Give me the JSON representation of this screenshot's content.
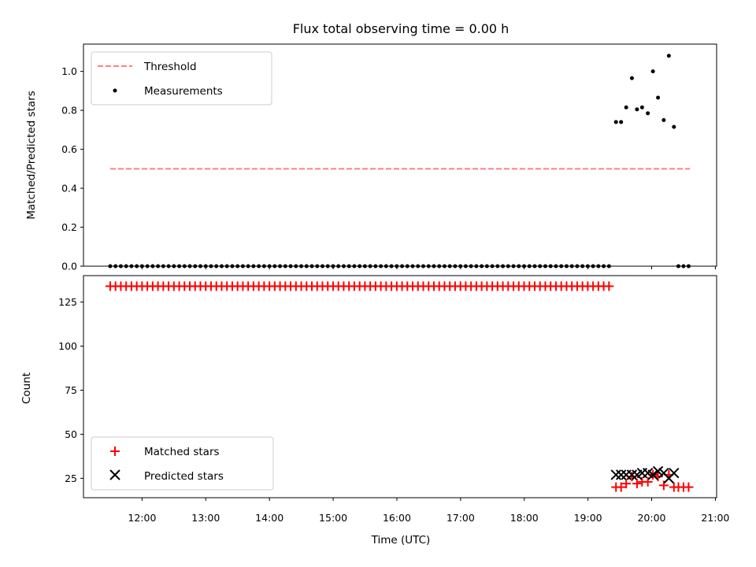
{
  "chart_data": [
    {
      "type": "scatter",
      "title": "Flux total observing time = 0.00 h",
      "ylabel": "Matched/Predicted stars",
      "xlabel": "",
      "xlim": [
        11.08,
        21.02
      ],
      "ylim": [
        0.0,
        1.14
      ],
      "yticks": [
        0.0,
        0.2,
        0.4,
        0.6,
        0.8,
        1.0
      ],
      "ytick_labels": [
        "0.0",
        "0.2",
        "0.4",
        "0.6",
        "0.8",
        "1.0"
      ],
      "legend_position": "top-left",
      "grid": false,
      "threshold": {
        "name": "Threshold",
        "value": 0.5,
        "x_range": [
          11.5,
          20.6
        ],
        "color": "#ff7f7f",
        "style": "dashed"
      },
      "measurements": {
        "name": "Measurements",
        "color": "#000000",
        "zero_x_range": [
          11.5,
          19.38
        ],
        "zero_x_step": 0.0833,
        "zero_x_extra": [
          20.42,
          20.5,
          20.58
        ],
        "points": [
          {
            "x": 19.44,
            "y": 0.74
          },
          {
            "x": 19.52,
            "y": 0.74
          },
          {
            "x": 19.6,
            "y": 0.815
          },
          {
            "x": 19.69,
            "y": 0.965
          },
          {
            "x": 19.77,
            "y": 0.805
          },
          {
            "x": 19.85,
            "y": 0.815
          },
          {
            "x": 19.94,
            "y": 0.785
          },
          {
            "x": 20.02,
            "y": 1.0
          },
          {
            "x": 20.1,
            "y": 0.865
          },
          {
            "x": 20.19,
            "y": 0.75
          },
          {
            "x": 20.27,
            "y": 1.08
          },
          {
            "x": 20.35,
            "y": 0.715
          }
        ]
      }
    },
    {
      "type": "scatter",
      "xlabel": "Time (UTC)",
      "ylabel": "Count",
      "xlim": [
        11.08,
        21.02
      ],
      "ylim": [
        14,
        140
      ],
      "yticks": [
        25,
        50,
        75,
        100,
        125
      ],
      "ytick_labels": [
        "25",
        "50",
        "75",
        "100",
        "125"
      ],
      "xticks": [
        12,
        13,
        14,
        15,
        16,
        17,
        18,
        19,
        20,
        21
      ],
      "xtick_labels": [
        "12:00",
        "13:00",
        "14:00",
        "15:00",
        "16:00",
        "17:00",
        "18:00",
        "19:00",
        "20:00",
        "21:00"
      ],
      "legend_position": "bottom-left",
      "grid": false,
      "matched": {
        "name": "Matched stars",
        "marker": "+",
        "color": "#ff0000",
        "flat_x_range": [
          11.5,
          19.38
        ],
        "flat_x_step": 0.0833,
        "flat_y": 134,
        "points": [
          {
            "x": 19.44,
            "y": 20
          },
          {
            "x": 19.52,
            "y": 20
          },
          {
            "x": 19.6,
            "y": 22
          },
          {
            "x": 19.69,
            "y": 26
          },
          {
            "x": 19.77,
            "y": 22
          },
          {
            "x": 19.85,
            "y": 23
          },
          {
            "x": 19.94,
            "y": 23
          },
          {
            "x": 20.02,
            "y": 27
          },
          {
            "x": 20.1,
            "y": 26
          },
          {
            "x": 20.19,
            "y": 21
          },
          {
            "x": 20.27,
            "y": 27
          },
          {
            "x": 20.35,
            "y": 20
          },
          {
            "x": 20.42,
            "y": 20
          },
          {
            "x": 20.5,
            "y": 20
          },
          {
            "x": 20.58,
            "y": 20
          }
        ]
      },
      "predicted": {
        "name": "Predicted stars",
        "marker": "x",
        "color": "#000000",
        "points": [
          {
            "x": 19.44,
            "y": 27
          },
          {
            "x": 19.52,
            "y": 27
          },
          {
            "x": 19.6,
            "y": 27
          },
          {
            "x": 19.69,
            "y": 27
          },
          {
            "x": 19.77,
            "y": 27
          },
          {
            "x": 19.85,
            "y": 28
          },
          {
            "x": 19.94,
            "y": 28
          },
          {
            "x": 20.02,
            "y": 27
          },
          {
            "x": 20.1,
            "y": 29
          },
          {
            "x": 20.19,
            "y": 28
          },
          {
            "x": 20.27,
            "y": 25
          },
          {
            "x": 20.35,
            "y": 28
          }
        ]
      }
    }
  ]
}
